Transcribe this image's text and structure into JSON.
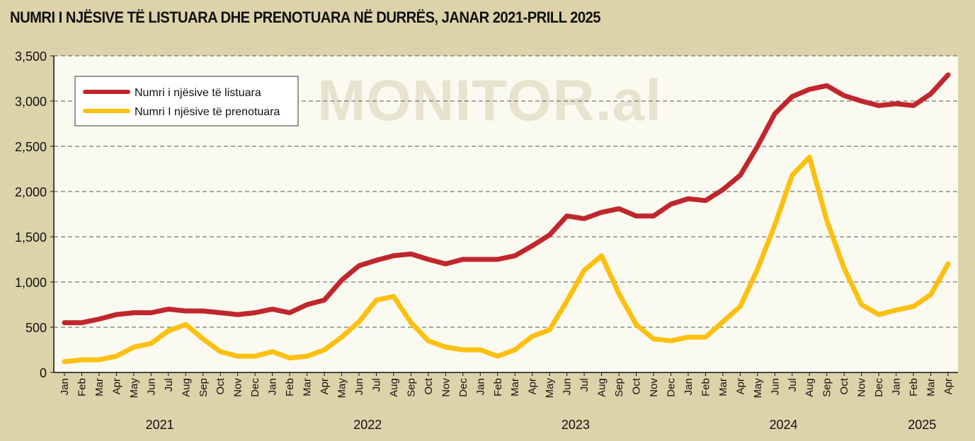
{
  "chart_data": {
    "type": "line",
    "title": "NUMRI I NJËSIVE TË LISTUARA DHE PRENOTUARA NË DURRËS, JANAR 2021-PRILL 2025",
    "watermark": "MONITOR.al",
    "xlabel": "",
    "ylabel": "",
    "ylim": [
      0,
      3500
    ],
    "yticks": [
      "0",
      "500",
      "1,000",
      "1,500",
      "2,000",
      "2,500",
      "3,000",
      "3,500"
    ],
    "grid": true,
    "legend_position": "top-left",
    "months": [
      "Jan",
      "Feb",
      "Mar",
      "Apr",
      "May",
      "Jun",
      "Jul",
      "Aug",
      "Sep",
      "Oct",
      "Nov",
      "Dec",
      "Jan",
      "Feb",
      "Mar",
      "Apr",
      "May",
      "Jun",
      "Jul",
      "Aug",
      "Sep",
      "Oct",
      "Nov",
      "Dec",
      "Jan",
      "Feb",
      "Mar",
      "Apr",
      "May",
      "Jun",
      "Jul",
      "Aug",
      "Sep",
      "Oct",
      "Nov",
      "Dec",
      "Jan",
      "Feb",
      "Mar",
      "Apr",
      "May",
      "Jun",
      "Jul",
      "Aug",
      "Sep",
      "Oct",
      "Nov",
      "Dec",
      "Jan",
      "Feb",
      "Mar",
      "Apr"
    ],
    "years": [
      {
        "label": "2021",
        "start": 0,
        "end": 11
      },
      {
        "label": "2022",
        "start": 12,
        "end": 23
      },
      {
        "label": "2023",
        "start": 24,
        "end": 35
      },
      {
        "label": "2024",
        "start": 36,
        "end": 47
      },
      {
        "label": "2025",
        "start": 48,
        "end": 51
      }
    ],
    "series": [
      {
        "name": "Numri i njësive të listuara",
        "color": "#c0272d",
        "values": [
          550,
          550,
          590,
          640,
          660,
          660,
          700,
          680,
          680,
          660,
          640,
          660,
          700,
          660,
          750,
          800,
          1020,
          1180,
          1240,
          1290,
          1310,
          1250,
          1200,
          1250,
          1250,
          1250,
          1290,
          1400,
          1520,
          1730,
          1700,
          1770,
          1810,
          1730,
          1730,
          1860,
          1920,
          1900,
          2020,
          2180,
          2500,
          2860,
          3050,
          3130,
          3170,
          3060,
          3000,
          2950,
          2970,
          2950,
          3080,
          3290
        ]
      },
      {
        "name": "Numri I njësive të prenotuara",
        "color": "#fdc010",
        "values": [
          120,
          140,
          140,
          180,
          280,
          320,
          460,
          530,
          370,
          230,
          180,
          180,
          230,
          160,
          180,
          250,
          390,
          560,
          800,
          840,
          550,
          350,
          280,
          250,
          250,
          180,
          250,
          400,
          470,
          790,
          1130,
          1290,
          870,
          530,
          370,
          350,
          390,
          390,
          560,
          730,
          1140,
          1630,
          2180,
          2380,
          1680,
          1150,
          750,
          640,
          690,
          730,
          860,
          1200
        ]
      }
    ]
  }
}
